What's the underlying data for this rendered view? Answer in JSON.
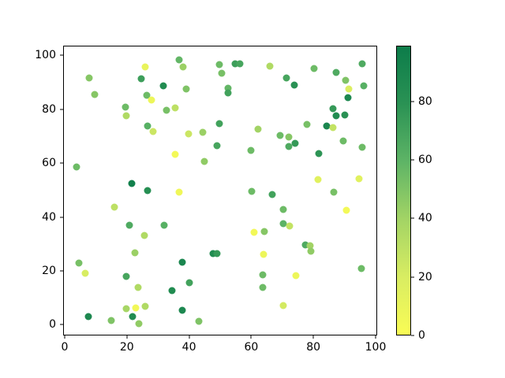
{
  "chart_data": {
    "type": "scatter",
    "title": "",
    "xlabel": "",
    "ylabel": "",
    "x_ticks": [
      "0",
      "20",
      "40",
      "60",
      "80",
      "100"
    ],
    "x_tick_values": [
      0,
      20,
      40,
      60,
      80,
      100
    ],
    "y_ticks": [
      "0",
      "20",
      "40",
      "60",
      "80",
      "100"
    ],
    "y_tick_values": [
      0,
      20,
      40,
      60,
      80,
      100
    ],
    "xlim": [
      -0.5,
      100.6
    ],
    "ylim": [
      -3.9,
      103.2
    ],
    "grid": false,
    "legend": "none",
    "marker_diameter_px": 9,
    "colorbar": {
      "vmin": 0,
      "vmax": 99,
      "tick_labels": [
        "0",
        "20",
        "40",
        "60",
        "80"
      ],
      "tick_values": [
        0,
        20,
        40,
        60,
        80
      ],
      "position": "right"
    },
    "colormap_stops": [
      [
        0.0,
        "#fafc55"
      ],
      [
        0.2,
        "#d9ed62"
      ],
      [
        0.4,
        "#a3d465"
      ],
      [
        0.6,
        "#5eb466"
      ],
      [
        0.8,
        "#2a9254"
      ],
      [
        1.0,
        "#0c7c4a"
      ]
    ],
    "points_format": [
      "x",
      "y",
      "color_value"
    ],
    "points": [
      [
        7.8,
        91.6,
        48
      ],
      [
        9.7,
        85.5,
        48
      ],
      [
        25.9,
        95.7,
        10
      ],
      [
        24.6,
        91.3,
        72
      ],
      [
        36.7,
        98.3,
        58
      ],
      [
        38.1,
        95.8,
        42
      ],
      [
        49.8,
        96.6,
        55
      ],
      [
        50.5,
        93.4,
        52
      ],
      [
        54.8,
        97.0,
        72
      ],
      [
        56.4,
        97.0,
        68
      ],
      [
        31.7,
        88.6,
        85
      ],
      [
        39.1,
        87.4,
        50
      ],
      [
        26.4,
        85.3,
        55
      ],
      [
        27.9,
        83.5,
        8
      ],
      [
        32.8,
        79.7,
        52
      ],
      [
        35.6,
        80.4,
        30
      ],
      [
        52.6,
        87.8,
        58
      ],
      [
        52.6,
        86.1,
        70
      ],
      [
        19.6,
        80.7,
        55
      ],
      [
        19.8,
        77.5,
        35
      ],
      [
        65.9,
        96.0,
        35
      ],
      [
        71.3,
        91.6,
        68
      ],
      [
        73.8,
        88.9,
        80
      ],
      [
        80.3,
        95.0,
        55
      ],
      [
        87.3,
        93.6,
        65
      ],
      [
        95.8,
        96.8,
        65
      ],
      [
        90.3,
        90.6,
        50
      ],
      [
        91.3,
        87.6,
        18
      ],
      [
        96.1,
        88.7,
        62
      ],
      [
        91.2,
        84.2,
        88
      ],
      [
        86.2,
        80.3,
        75
      ],
      [
        26.7,
        73.7,
        62
      ],
      [
        28.5,
        71.6,
        25
      ],
      [
        39.9,
        70.8,
        25
      ],
      [
        44.3,
        71.5,
        42
      ],
      [
        49.8,
        74.6,
        70
      ],
      [
        48.9,
        66.5,
        68
      ],
      [
        35.6,
        63.3,
        4
      ],
      [
        45.0,
        60.5,
        45
      ],
      [
        62.3,
        72.5,
        40
      ],
      [
        69.2,
        70.2,
        55
      ],
      [
        72.2,
        69.6,
        48
      ],
      [
        74.1,
        67.4,
        75
      ],
      [
        72.2,
        66.1,
        65
      ],
      [
        77.9,
        74.5,
        52
      ],
      [
        87.4,
        77.7,
        85
      ],
      [
        90.1,
        78.0,
        80
      ],
      [
        84.2,
        73.8,
        90
      ],
      [
        86.2,
        73.1,
        28
      ],
      [
        81.6,
        63.5,
        78
      ],
      [
        89.5,
        68.1,
        55
      ],
      [
        95.8,
        66.0,
        55
      ],
      [
        59.8,
        64.8,
        55
      ],
      [
        3.7,
        58.5,
        55
      ],
      [
        21.5,
        52.3,
        95
      ],
      [
        26.6,
        49.8,
        82
      ],
      [
        36.8,
        49.2,
        6
      ],
      [
        60.2,
        49.5,
        55
      ],
      [
        66.8,
        48.2,
        70
      ],
      [
        86.5,
        49.1,
        52
      ],
      [
        81.5,
        54.0,
        15
      ],
      [
        94.6,
        54.3,
        15
      ],
      [
        16.0,
        43.6,
        30
      ],
      [
        70.2,
        42.8,
        55
      ],
      [
        90.6,
        42.6,
        4
      ],
      [
        20.9,
        37.0,
        65
      ],
      [
        31.9,
        36.9,
        62
      ],
      [
        25.7,
        33.0,
        35
      ],
      [
        61.0,
        34.3,
        5
      ],
      [
        64.2,
        34.6,
        48
      ],
      [
        70.2,
        37.6,
        60
      ],
      [
        72.3,
        36.7,
        28
      ],
      [
        22.7,
        26.7,
        42
      ],
      [
        47.8,
        26.3,
        85
      ],
      [
        48.9,
        26.3,
        75
      ],
      [
        63.9,
        26.1,
        8
      ],
      [
        77.3,
        29.6,
        65
      ],
      [
        78.9,
        29.3,
        40
      ],
      [
        79.2,
        27.2,
        45
      ],
      [
        4.6,
        22.8,
        52
      ],
      [
        37.9,
        23.2,
        90
      ],
      [
        95.4,
        20.9,
        55
      ],
      [
        6.7,
        19.2,
        20
      ],
      [
        19.8,
        18.0,
        68
      ],
      [
        40.2,
        15.6,
        70
      ],
      [
        23.5,
        13.7,
        35
      ],
      [
        34.4,
        12.8,
        85
      ],
      [
        63.6,
        18.4,
        55
      ],
      [
        74.4,
        18.2,
        8
      ],
      [
        63.6,
        13.9,
        55
      ],
      [
        70.2,
        7.2,
        22
      ],
      [
        19.9,
        6.0,
        38
      ],
      [
        22.9,
        6.1,
        5
      ],
      [
        26.0,
        6.8,
        35
      ],
      [
        21.9,
        3.1,
        85
      ],
      [
        37.7,
        5.4,
        88
      ],
      [
        7.7,
        2.9,
        88
      ],
      [
        14.9,
        1.6,
        50
      ],
      [
        23.8,
        0.3,
        45
      ],
      [
        43.2,
        1.4,
        50
      ]
    ]
  }
}
